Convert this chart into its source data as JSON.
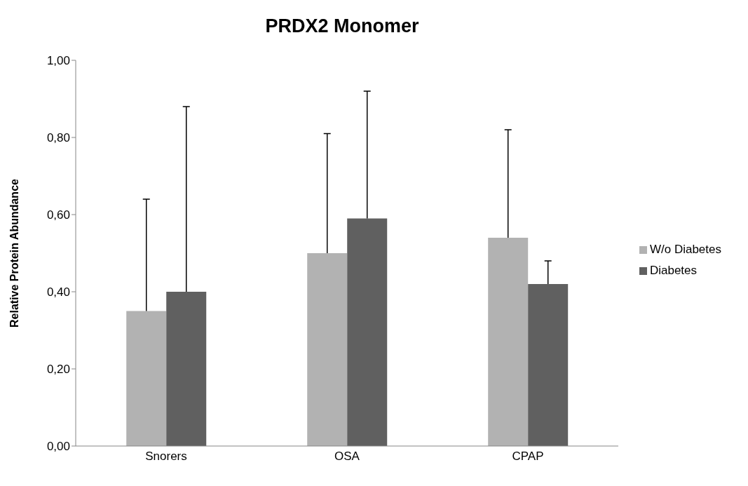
{
  "chart_data": {
    "type": "bar",
    "title": "PRDX2 Monomer",
    "ylabel": "Relative Protein Abundance",
    "categories": [
      "Snorers",
      "OSA",
      "CPAP"
    ],
    "series": [
      {
        "name": "W/o Diabetes",
        "color": "#b2b2b2",
        "values": [
          0.35,
          0.5,
          0.54
        ],
        "errors": [
          [
            0.35,
            0.64
          ],
          [
            0.5,
            0.81
          ],
          [
            0.54,
            0.82
          ]
        ]
      },
      {
        "name": "Diabetes",
        "color": "#606060",
        "values": [
          0.4,
          0.59,
          0.42
        ],
        "errors": [
          [
            0.4,
            0.88
          ],
          [
            0.59,
            0.92
          ],
          [
            0.42,
            0.48
          ]
        ]
      }
    ],
    "ylim": [
      0,
      1
    ],
    "yticks": [
      {
        "value": 0,
        "label": "0,00"
      },
      {
        "value": 0.2,
        "label": "0,20"
      },
      {
        "value": 0.4,
        "label": "0,40"
      },
      {
        "value": 0.6,
        "label": "0,60"
      },
      {
        "value": 0.8,
        "label": "0,80"
      },
      {
        "value": 1,
        "label": "1,00"
      }
    ],
    "grid": false,
    "legend": "right"
  }
}
